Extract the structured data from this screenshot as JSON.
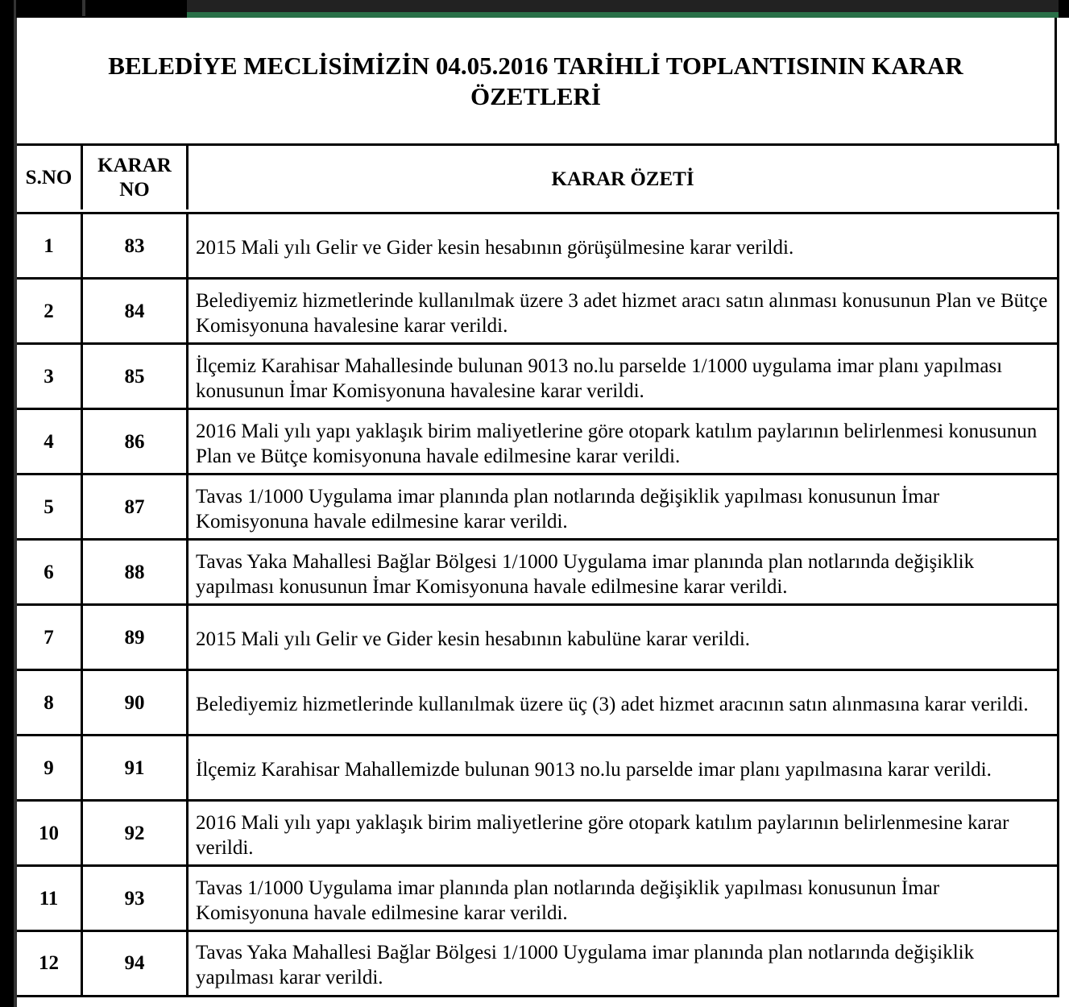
{
  "title": "BELEDİYE MECLİSİMİZİN 04.05.2016 TARİHLİ TOPLANTISININ KARAR ÖZETLERİ",
  "headers": {
    "sno": "S.NO",
    "karar_no": "KARAR NO",
    "ozet": "KARAR ÖZETİ"
  },
  "rows": [
    {
      "sno": "1",
      "karar_no": "83",
      "ozet": "2015 Mali yılı Gelir ve Gider kesin hesabının görüşülmesine karar verildi."
    },
    {
      "sno": "2",
      "karar_no": "84",
      "ozet": "Belediyemiz hizmetlerinde kullanılmak üzere 3 adet hizmet aracı satın alınması konusunun Plan ve Bütçe Komisyonuna havalesine karar verildi."
    },
    {
      "sno": "3",
      "karar_no": "85",
      "ozet": "İlçemiz Karahisar Mahallesinde bulunan 9013 no.lu parselde 1/1000 uygulama imar planı yapılması konusunun İmar Komisyonuna havalesine karar verildi."
    },
    {
      "sno": "4",
      "karar_no": "86",
      "ozet": "2016 Mali yılı yapı yaklaşık birim maliyetlerine göre otopark katılım paylarının belirlenmesi konusunun Plan ve Bütçe komisyonuna havale edilmesine karar verildi."
    },
    {
      "sno": "5",
      "karar_no": "87",
      "ozet": "Tavas 1/1000 Uygulama imar planında plan notlarında değişiklik yapılması konusunun İmar Komisyonuna havale edilmesine karar verildi."
    },
    {
      "sno": "6",
      "karar_no": "88",
      "ozet": " Tavas Yaka Mahallesi Bağlar Bölgesi 1/1000 Uygulama imar planında plan notlarında değişiklik yapılması konusunun İmar Komisyonuna havale edilmesine karar verildi."
    },
    {
      "sno": "7",
      "karar_no": "89",
      "ozet": "2015 Mali yılı Gelir ve Gider kesin hesabının kabulüne karar verildi."
    },
    {
      "sno": "8",
      "karar_no": "90",
      "ozet": "Belediyemiz hizmetlerinde kullanılmak üzere üç (3) adet hizmet aracının satın alınmasına karar verildi."
    },
    {
      "sno": "9",
      "karar_no": "91",
      "ozet": "İlçemiz Karahisar Mahallemizde bulunan 9013 no.lu parselde imar planı yapılmasına karar verildi."
    },
    {
      "sno": "10",
      "karar_no": "92",
      "ozet": "2016 Mali yılı yapı yaklaşık birim maliyetlerine göre otopark katılım paylarının belirlenmesine karar verildi."
    },
    {
      "sno": "11",
      "karar_no": "93",
      "ozet": "Tavas 1/1000 Uygulama imar planında plan notlarında değişiklik yapılması konusunun İmar Komisyonuna havale edilmesine karar verildi."
    },
    {
      "sno": "12",
      "karar_no": "94",
      "ozet": "Tavas Yaka Mahallesi Bağlar Bölgesi 1/1000 Uygulama imar planında plan notlarında değişiklik yapılması karar verildi."
    }
  ],
  "colors": {
    "tab_accent": "#2a7048",
    "border": "#000000"
  }
}
